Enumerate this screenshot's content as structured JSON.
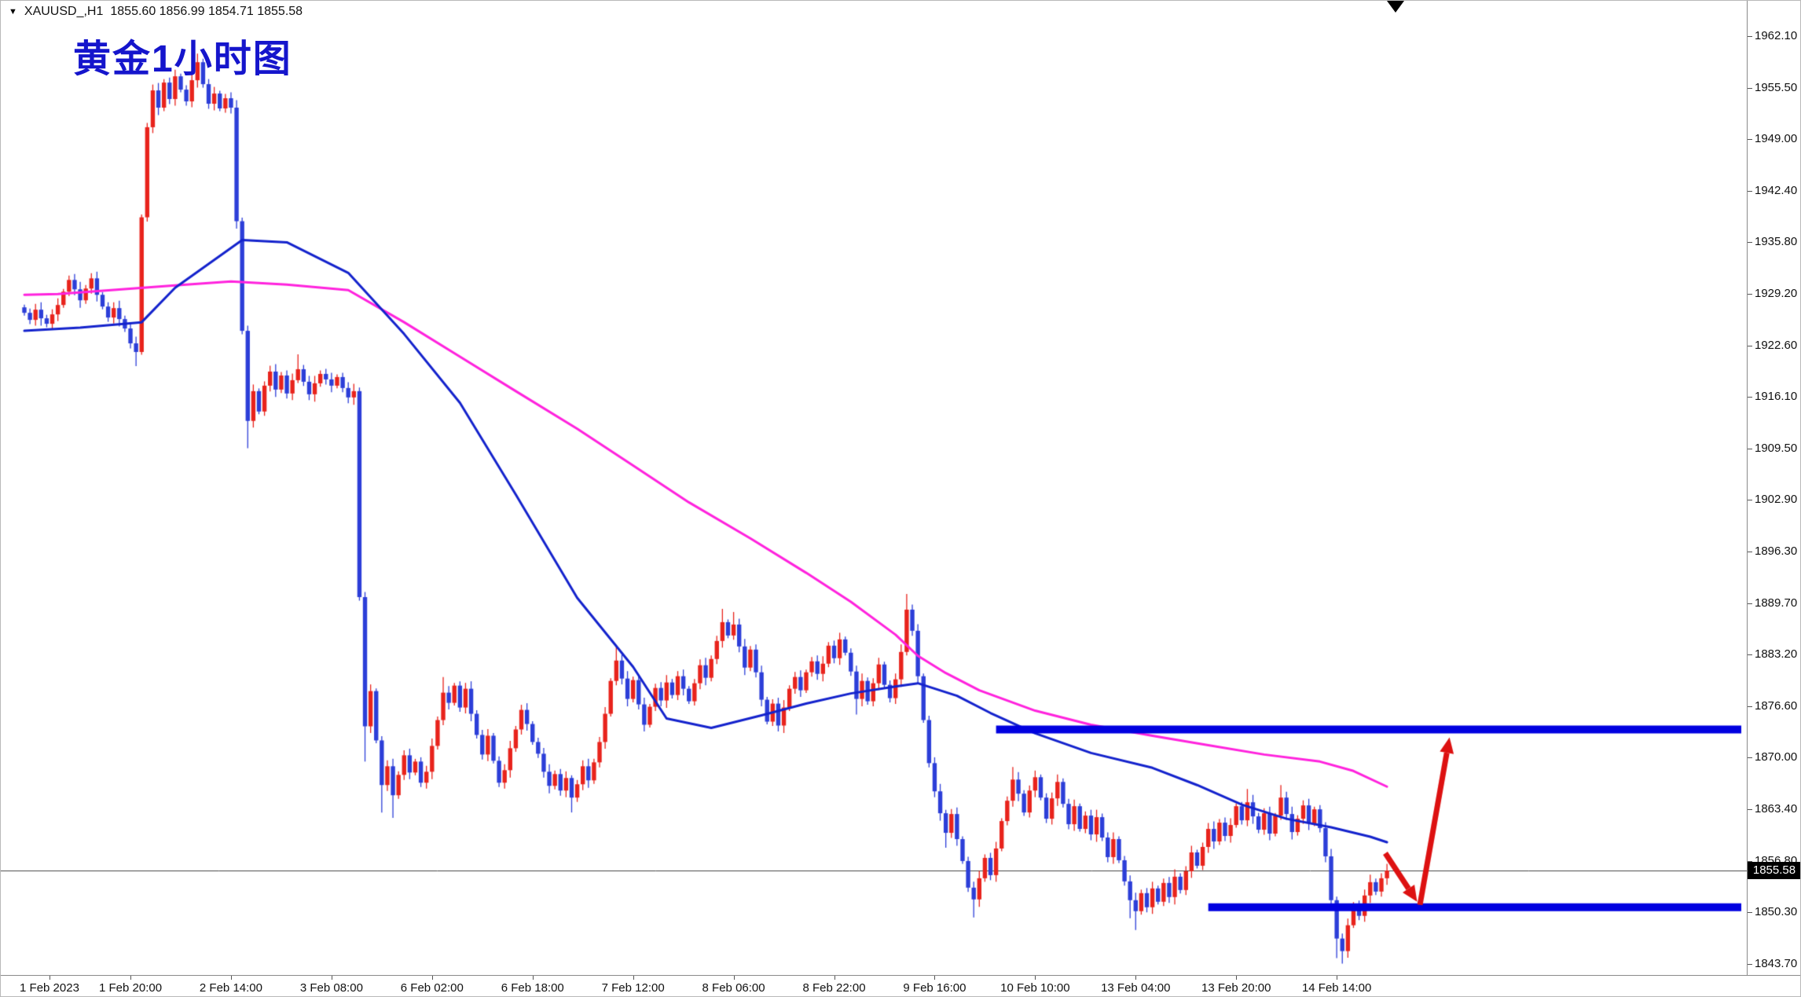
{
  "colors": {
    "bull": "#e8231c",
    "bear": "#2c3ed8",
    "ma_fast": "#1322cc",
    "ma_slow": "#ff22dd",
    "hline": "#0000e0",
    "arrow": "#dd1111",
    "current_price_line": "#444444",
    "title": "#1515cc",
    "tag_bg": "#000000",
    "tag_text": "#ffffff"
  },
  "info_bar": {
    "dropdown_icon": "▼",
    "symbol_timeframe": "XAUUSD_,H1",
    "ohlc": "1855.60 1856.99 1854.71 1855.58"
  },
  "annotation": {
    "title": "黄金1小时图"
  },
  "chart_data": {
    "type": "candlestick",
    "symbol": "XAUUSD_",
    "timeframe": "H1",
    "title": "黄金1小时图",
    "ohlc_current": {
      "open": 1855.6,
      "high": 1856.99,
      "low": 1854.71,
      "close": 1855.58
    },
    "current_price": 1855.58,
    "current_price_label": "1855.58",
    "price_axis_range": [
      1843.7,
      1962.1
    ],
    "y_axis_labels": [
      "1962.10",
      "1955.50",
      "1949.00",
      "1942.40",
      "1935.80",
      "1929.20",
      "1922.60",
      "1916.10",
      "1909.50",
      "1902.90",
      "1896.30",
      "1889.70",
      "1883.20",
      "1876.60",
      "1870.00",
      "1863.40",
      "1856.80",
      "1850.30",
      "1843.70"
    ],
    "x_axis_labels": [
      {
        "label": "1 Feb 2023",
        "bar": 4.5
      },
      {
        "label": "1 Feb 20:00",
        "bar": 19
      },
      {
        "label": "2 Feb 14:00",
        "bar": 37
      },
      {
        "label": "3 Feb 08:00",
        "bar": 55
      },
      {
        "label": "6 Feb 02:00",
        "bar": 73
      },
      {
        "label": "6 Feb 18:00",
        "bar": 91
      },
      {
        "label": "7 Feb 12:00",
        "bar": 109
      },
      {
        "label": "8 Feb 06:00",
        "bar": 127
      },
      {
        "label": "8 Feb 22:00",
        "bar": 145
      },
      {
        "label": "9 Feb 16:00",
        "bar": 163
      },
      {
        "label": "10 Feb 10:00",
        "bar": 181
      },
      {
        "label": "13 Feb 04:00",
        "bar": 199
      },
      {
        "label": "13 Feb 20:00",
        "bar": 217
      },
      {
        "label": "14 Feb 14:00",
        "bar": 235
      }
    ],
    "first_open": 1927.5,
    "closes": [
      1926.8,
      1925.9,
      1927.2,
      1926.1,
      1925.4,
      1926.6,
      1927.8,
      1929.5,
      1931.0,
      1929.8,
      1928.4,
      1929.9,
      1931.2,
      1929.1,
      1927.6,
      1926.2,
      1927.4,
      1926.0,
      1924.8,
      1922.9,
      1921.8,
      1939.0,
      1950.5,
      1955.2,
      1953.0,
      1956.2,
      1954.1,
      1957.0,
      1955.3,
      1953.8,
      1956.5,
      1958.8,
      1956.0,
      1953.5,
      1954.8,
      1952.9,
      1954.2,
      1953.0,
      1938.5,
      1924.5,
      1913.0,
      1916.8,
      1914.2,
      1917.5,
      1919.3,
      1917.0,
      1918.8,
      1916.5,
      1918.2,
      1919.6,
      1918.0,
      1916.4,
      1917.8,
      1919.0,
      1918.3,
      1917.5,
      1918.6,
      1917.2,
      1916.0,
      1916.8,
      1890.5,
      1874.0,
      1878.5,
      1872.2,
      1866.5,
      1868.9,
      1865.2,
      1867.8,
      1870.3,
      1868.1,
      1869.5,
      1866.8,
      1868.2,
      1871.5,
      1874.8,
      1878.3,
      1877.0,
      1879.2,
      1876.4,
      1878.8,
      1875.6,
      1872.9,
      1870.4,
      1872.8,
      1869.6,
      1866.8,
      1868.4,
      1871.2,
      1873.6,
      1876.1,
      1874.3,
      1872.0,
      1870.5,
      1868.2,
      1866.4,
      1867.9,
      1865.8,
      1867.4,
      1864.9,
      1866.6,
      1868.9,
      1867.1,
      1869.4,
      1872.0,
      1875.6,
      1879.8,
      1882.4,
      1880.1,
      1877.5,
      1879.9,
      1876.8,
      1874.2,
      1876.5,
      1878.9,
      1877.3,
      1879.6,
      1878.0,
      1880.4,
      1878.8,
      1877.2,
      1879.5,
      1881.8,
      1880.2,
      1882.6,
      1884.9,
      1887.3,
      1885.6,
      1887.0,
      1884.2,
      1881.5,
      1883.8,
      1880.9,
      1877.4,
      1874.6,
      1876.9,
      1874.1,
      1876.4,
      1878.8,
      1880.3,
      1878.6,
      1880.9,
      1882.3,
      1880.7,
      1882.0,
      1884.3,
      1882.7,
      1885.1,
      1883.4,
      1881.0,
      1877.5,
      1879.8,
      1877.2,
      1879.5,
      1881.9,
      1879.3,
      1877.6,
      1880.0,
      1883.5,
      1888.9,
      1886.2,
      1880.4,
      1874.8,
      1869.3,
      1865.7,
      1862.9,
      1860.4,
      1862.8,
      1859.6,
      1856.8,
      1853.4,
      1851.9,
      1854.6,
      1857.2,
      1855.0,
      1858.4,
      1861.9,
      1864.5,
      1867.2,
      1865.4,
      1863.0,
      1865.8,
      1867.5,
      1864.9,
      1862.2,
      1864.8,
      1866.9,
      1864.1,
      1861.5,
      1863.8,
      1860.9,
      1862.6,
      1860.2,
      1862.4,
      1859.8,
      1857.3,
      1859.6,
      1856.9,
      1854.2,
      1851.8,
      1850.4,
      1852.7,
      1850.9,
      1853.3,
      1851.6,
      1854.0,
      1852.2,
      1854.8,
      1853.1,
      1855.5,
      1857.9,
      1856.2,
      1858.6,
      1860.9,
      1859.3,
      1861.7,
      1860.0,
      1861.4,
      1863.8,
      1862.0,
      1864.3,
      1862.5,
      1860.8,
      1862.9,
      1860.3,
      1862.6,
      1864.9,
      1862.8,
      1860.5,
      1862.2,
      1863.9,
      1861.6,
      1863.4,
      1861.0,
      1857.4,
      1851.8,
      1846.9,
      1845.3,
      1848.6,
      1851.2,
      1849.8,
      1852.4,
      1854.1,
      1852.9,
      1854.6,
      1855.58
    ],
    "wick_pad": 0.35,
    "wick_overrides": {
      "20": [
        null,
        1920.0
      ],
      "31": [
        1959.9,
        null
      ],
      "40": [
        null,
        1909.5
      ],
      "49": [
        1921.5,
        null
      ],
      "61": [
        null,
        1869.5
      ],
      "64": [
        null,
        1863.0
      ],
      "66": [
        null,
        1862.3
      ],
      "75": [
        1880.3,
        null
      ],
      "98": [
        null,
        1863.0
      ],
      "106": [
        1884.3,
        null
      ],
      "125": [
        1889.0,
        null
      ],
      "127": [
        1888.6,
        null
      ],
      "149": [
        null,
        1875.5
      ],
      "158": [
        1890.9,
        null
      ],
      "165": [
        null,
        1858.5
      ],
      "170": [
        null,
        1849.6
      ],
      "177": [
        1868.8,
        null
      ],
      "198": [
        null,
        1849.5
      ],
      "199": [
        null,
        1848.0
      ],
      "219": [
        1866.0,
        null
      ],
      "225": [
        1866.5,
        null
      ],
      "235": [
        null,
        1844.4
      ],
      "236": [
        null,
        1843.7
      ]
    },
    "ma_fast": {
      "name": "fast-ma-blue",
      "anchors": [
        [
          0,
          1924.5
        ],
        [
          10,
          1924.9
        ],
        [
          21,
          1925.6
        ],
        [
          27,
          1930.0
        ],
        [
          39,
          1936.1
        ],
        [
          47,
          1935.8
        ],
        [
          58,
          1931.9
        ],
        [
          68,
          1924.1
        ],
        [
          78,
          1915.3
        ],
        [
          88,
          1903.6
        ],
        [
          99,
          1890.4
        ],
        [
          109,
          1881.6
        ],
        [
          115,
          1875.0
        ],
        [
          123,
          1873.8
        ],
        [
          132,
          1875.4
        ],
        [
          140,
          1876.9
        ],
        [
          148,
          1878.2
        ],
        [
          156,
          1879.1
        ],
        [
          160,
          1879.5
        ],
        [
          167,
          1877.9
        ],
        [
          173,
          1875.7
        ],
        [
          181,
          1873.1
        ],
        [
          191,
          1870.6
        ],
        [
          202,
          1868.7
        ],
        [
          210,
          1866.5
        ],
        [
          218,
          1864.0
        ],
        [
          226,
          1862.2
        ],
        [
          234,
          1861.1
        ],
        [
          241,
          1859.9
        ],
        [
          244,
          1859.2
        ]
      ]
    },
    "ma_slow": {
      "name": "slow-ma-magenta",
      "anchors": [
        [
          0,
          1929.1
        ],
        [
          6,
          1929.2
        ],
        [
          27,
          1930.3
        ],
        [
          37,
          1930.8
        ],
        [
          47,
          1930.4
        ],
        [
          58,
          1929.7
        ],
        [
          68,
          1925.6
        ],
        [
          78,
          1921.2
        ],
        [
          88,
          1916.8
        ],
        [
          99,
          1912.0
        ],
        [
          109,
          1907.3
        ],
        [
          119,
          1902.6
        ],
        [
          130,
          1898.0
        ],
        [
          140,
          1893.6
        ],
        [
          148,
          1889.9
        ],
        [
          156,
          1885.7
        ],
        [
          160,
          1883.0
        ],
        [
          165,
          1880.8
        ],
        [
          171,
          1878.6
        ],
        [
          181,
          1876.0
        ],
        [
          191,
          1874.2
        ],
        [
          202,
          1872.8
        ],
        [
          212,
          1871.6
        ],
        [
          222,
          1870.4
        ],
        [
          232,
          1869.5
        ],
        [
          238,
          1868.3
        ],
        [
          244,
          1866.3
        ]
      ]
    },
    "hlines": [
      {
        "name": "resistance-line",
        "price": 1873.6,
        "from_bar": 174
      },
      {
        "name": "support-line",
        "price": 1850.9,
        "from_bar": 212
      }
    ],
    "arrow_annotation": {
      "segments": [
        [
          [
            243.7,
            1857.8
          ],
          [
            249.4,
            1851.6
          ]
        ],
        [
          [
            249.9,
            1851.2
          ],
          [
            255.2,
            1872.6
          ]
        ]
      ]
    }
  }
}
